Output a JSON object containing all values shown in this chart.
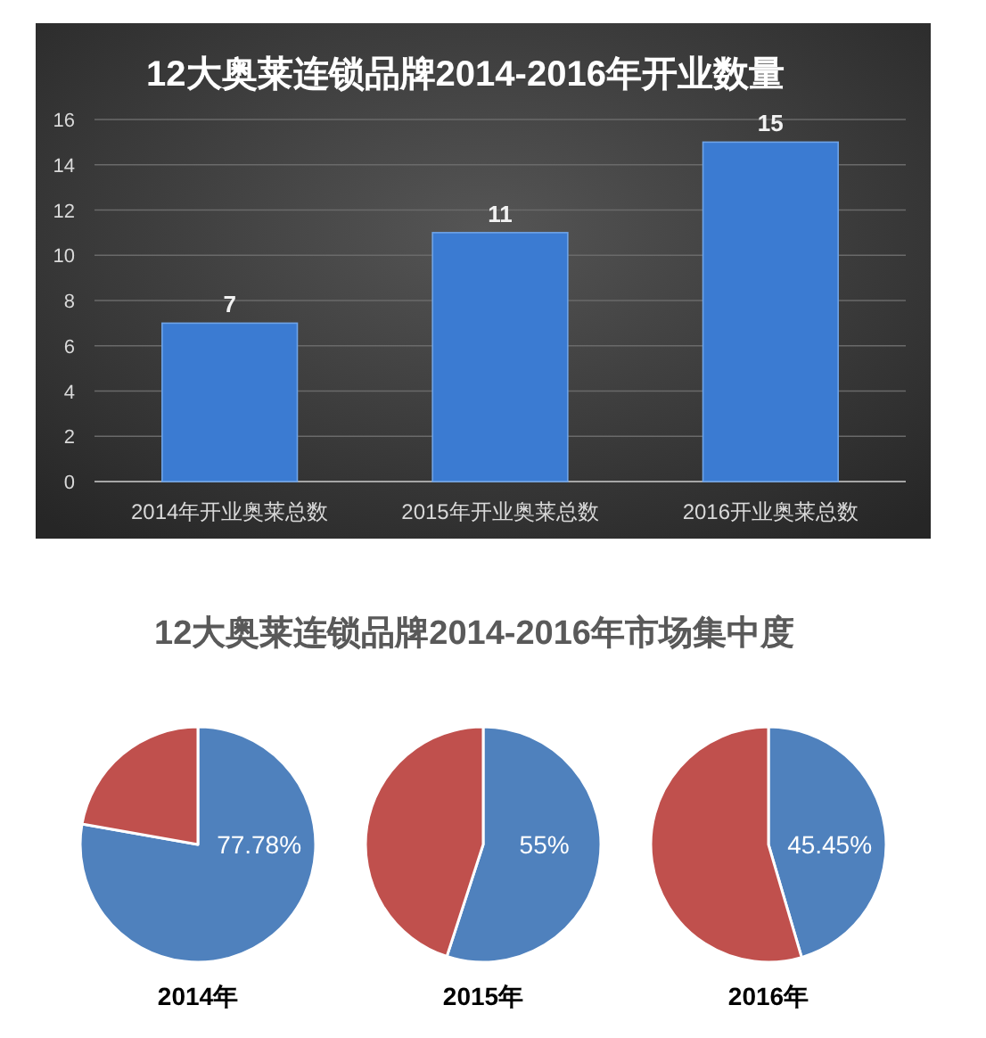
{
  "chart_data": [
    {
      "type": "bar",
      "title": "12大奥莱连锁品牌2014-2016年开业数量",
      "categories": [
        "2014年开业奥莱总数",
        "2015年开业奥莱总数",
        "2016开业奥莱总数"
      ],
      "values": [
        7,
        11,
        15
      ],
      "color": "#3b7bd2",
      "ylim": [
        0,
        16
      ],
      "yticks": [
        0,
        2,
        4,
        6,
        8,
        10,
        12,
        14,
        16
      ],
      "grid": "y",
      "data_labels": true
    },
    {
      "type": "pie",
      "title": "12大奥莱连锁品牌2014-2016年市场集中度",
      "xlabel": "2014年",
      "categories": [
        null,
        null
      ],
      "values": [
        77.78,
        22.22
      ],
      "colors": [
        "#4f81bd",
        "#c0504d"
      ],
      "value_labels": [
        "77.78%",
        null
      ]
    },
    {
      "type": "pie",
      "xlabel": "2015年",
      "categories": [
        null,
        null
      ],
      "values": [
        55,
        45
      ],
      "colors": [
        "#4f81bd",
        "#c0504d"
      ],
      "value_labels": [
        "55%",
        null
      ]
    },
    {
      "type": "pie",
      "xlabel": "2016年",
      "categories": [
        null,
        null
      ],
      "values": [
        45.45,
        54.55
      ],
      "colors": [
        "#4f81bd",
        "#c0504d"
      ],
      "value_labels": [
        "45.45%",
        null
      ]
    }
  ]
}
